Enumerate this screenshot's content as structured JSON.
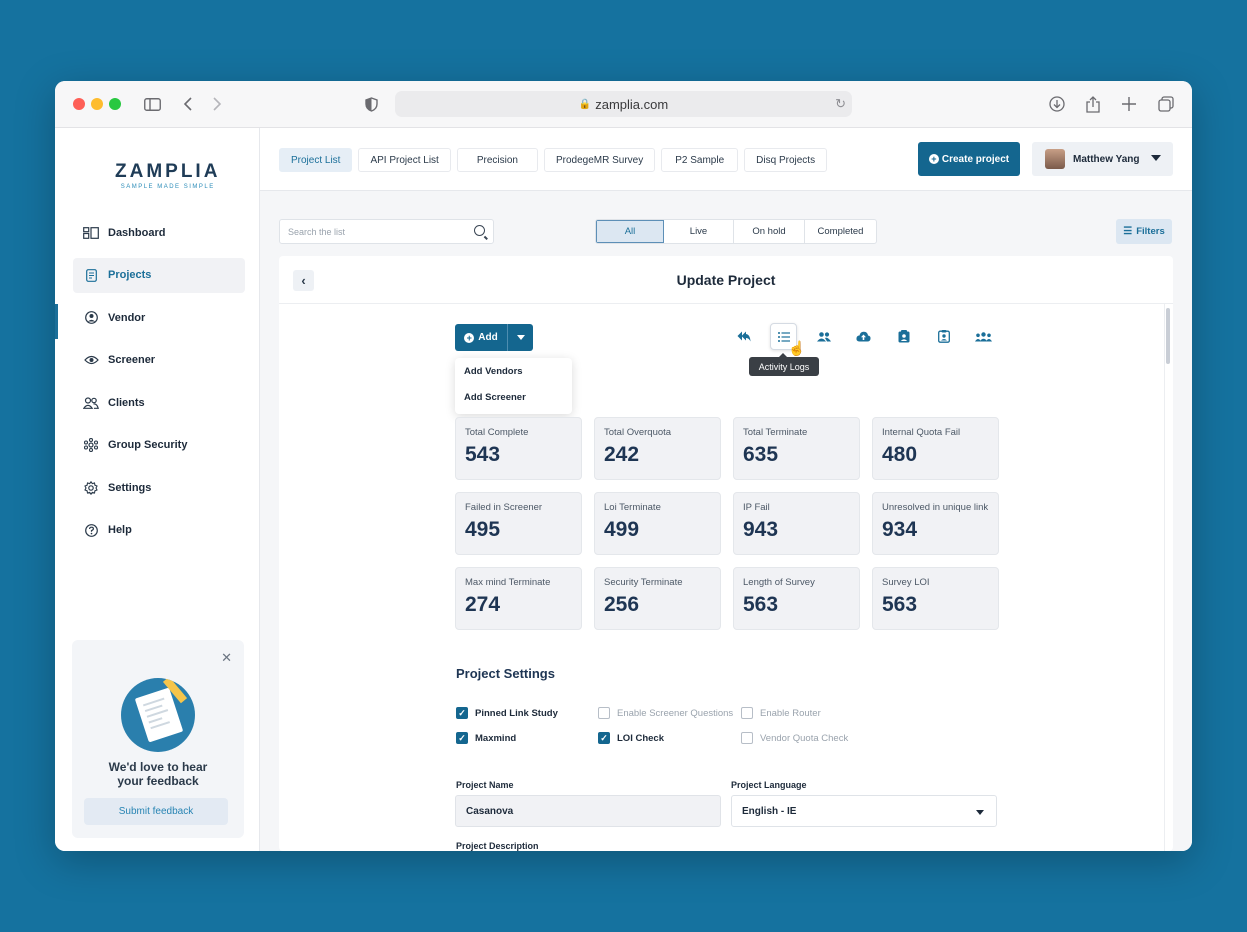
{
  "browser": {
    "url": "zamplia.com"
  },
  "sidebar": {
    "logo": "ZAMPLIA",
    "tagline": "SAMPLE MADE SIMPLE",
    "items": [
      {
        "label": "Dashboard",
        "icon": "dashboard-icon"
      },
      {
        "label": "Projects",
        "icon": "projects-icon",
        "active": true
      },
      {
        "label": "Vendor",
        "icon": "vendor-icon"
      },
      {
        "label": "Screener",
        "icon": "screener-icon"
      },
      {
        "label": "Clients",
        "icon": "clients-icon"
      },
      {
        "label": "Group Security",
        "icon": "group-security-icon"
      },
      {
        "label": "Settings",
        "icon": "settings-icon"
      },
      {
        "label": "Help",
        "icon": "help-icon"
      }
    ],
    "feedback": {
      "message": "We'd love to hear your feedback",
      "button": "Submit feedback"
    }
  },
  "topbar": {
    "tabs": [
      "Project List",
      "API Project List",
      "Precision",
      "ProdegeMR Survey",
      "P2 Sample",
      "Disq Projects"
    ],
    "active_tab": "Project List",
    "create_label": "Create project",
    "user_name": "Matthew Yang"
  },
  "toolbar": {
    "search_placeholder": "Search the list",
    "segments": [
      "All",
      "Live",
      "On hold",
      "Completed"
    ],
    "active_segment": "All",
    "filters_label": "Filters"
  },
  "panel": {
    "title": "Update Project",
    "add_label": "Add",
    "add_menu": [
      "Add Vendors",
      "Add Screener"
    ],
    "tooltip": "Activity Logs",
    "stats": [
      {
        "label": "Total Complete",
        "value": "543"
      },
      {
        "label": "Total Overquota",
        "value": "242"
      },
      {
        "label": "Total Terminate",
        "value": "635"
      },
      {
        "label": "Internal Quota Fail",
        "value": "480"
      },
      {
        "label": "Failed in Screener",
        "value": "495"
      },
      {
        "label": "Loi Terminate",
        "value": "499"
      },
      {
        "label": "IP Fail",
        "value": "943"
      },
      {
        "label": "Unresolved in unique link",
        "value": "934"
      },
      {
        "label": "Max mind Terminate",
        "value": "274"
      },
      {
        "label": "Security Terminate",
        "value": "256"
      },
      {
        "label": "Length of Survey",
        "value": "563"
      },
      {
        "label": "Survey LOI",
        "value": "563"
      }
    ],
    "settings_title": "Project Settings",
    "checkboxes": [
      {
        "label": "Pinned Link Study",
        "checked": true
      },
      {
        "label": "Enable Screener Questions",
        "checked": false
      },
      {
        "label": "Enable Router",
        "checked": false
      },
      {
        "label": "Maxmind",
        "checked": true
      },
      {
        "label": "LOI Check",
        "checked": true
      },
      {
        "label": "Vendor Quota Check",
        "checked": false
      }
    ],
    "project_name_label": "Project Name",
    "project_name_value": "Casanova",
    "project_language_label": "Project Language",
    "project_language_value": "English - IE",
    "project_description_label": "Project Description"
  },
  "colors": {
    "background": "#15729f",
    "primary": "#14668f",
    "accent": "#1b6f99"
  }
}
